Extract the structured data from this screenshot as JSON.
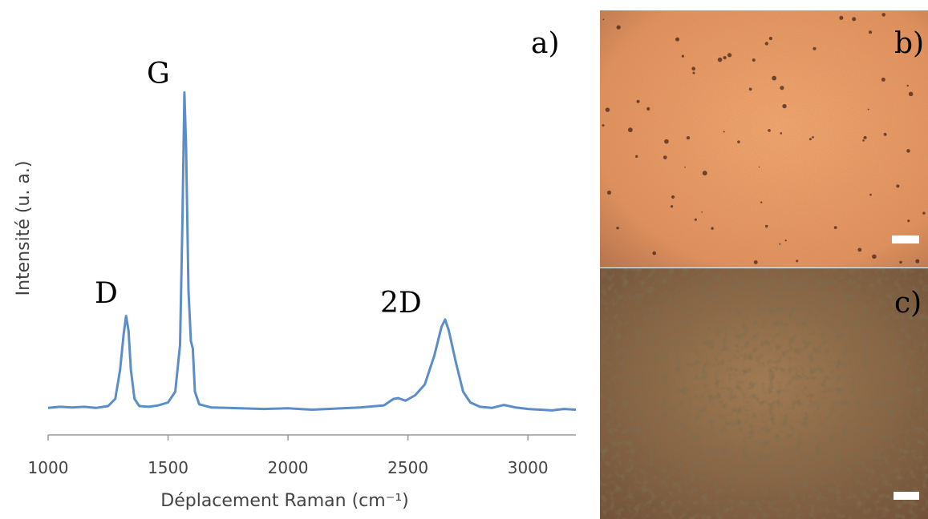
{
  "chart_data": {
    "type": "line",
    "x_label": "Déplacement Raman (cm⁻¹)",
    "y_label": "Intensité (u. a.)",
    "annotations": [
      "D",
      "G",
      "2D",
      "a)"
    ],
    "panels": [
      "b)",
      "c)"
    ],
    "color": "#5b8ec9",
    "x": [
      1000,
      1050,
      1100,
      1150,
      1200,
      1250,
      1280,
      1300,
      1315,
      1325,
      1335,
      1345,
      1360,
      1380,
      1420,
      1460,
      1500,
      1530,
      1550,
      1560,
      1568,
      1575,
      1585,
      1595,
      1603,
      1612,
      1630,
      1680,
      1750,
      1800,
      1900,
      2000,
      2100,
      2200,
      2300,
      2400,
      2440,
      2460,
      2490,
      2530,
      2570,
      2610,
      2640,
      2655,
      2670,
      2700,
      2730,
      2760,
      2800,
      2850,
      2900,
      2950,
      3000,
      3100,
      3150,
      3200
    ],
    "values": [
      7.5,
      7.8,
      7.6,
      7.8,
      7.5,
      8,
      10,
      18,
      28,
      33,
      29,
      18,
      10,
      8,
      7.8,
      8.2,
      9,
      12,
      25,
      60,
      95,
      80,
      40,
      26,
      24,
      12,
      8.5,
      7.6,
      7.5,
      7.4,
      7.2,
      7.4,
      7.0,
      7.3,
      7.6,
      8.2,
      10,
      10.2,
      9.5,
      11,
      14,
      22,
      30,
      32,
      29,
      20,
      12,
      9,
      7.8,
      7.5,
      8.3,
      7.6,
      7.2,
      6.8,
      7.2,
      7.0
    ],
    "xlim": [
      1000,
      3200
    ],
    "xticks": [
      1000,
      1500,
      2000,
      2500,
      3000
    ],
    "ylim": [
      0,
      100
    ]
  }
}
